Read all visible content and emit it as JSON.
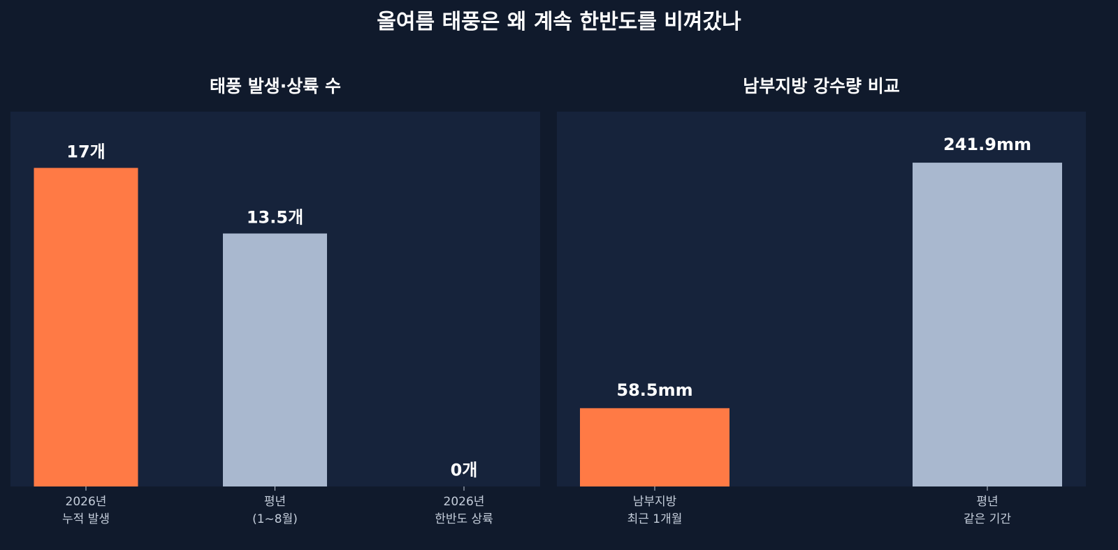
{
  "title": "올여름 태풍은 왜 계속 한반도를 비껴갔나",
  "chart_data": [
    {
      "type": "bar",
      "title": "태풍 발생·상륙 수",
      "categories": [
        "2026년\n누적 발생",
        "평년\n(1~8월)",
        "2026년\n한반도 상륙"
      ],
      "values": [
        17,
        13.5,
        0
      ],
      "value_labels": [
        "17개",
        "13.5개",
        "0개"
      ],
      "colors": [
        "#ff7a45",
        "#a9b8cf",
        "#a9b8cf"
      ],
      "ylim": [
        0,
        20
      ]
    },
    {
      "type": "bar",
      "title": "남부지방 강수량 비교",
      "categories": [
        "남부지방\n최근 1개월",
        "평년\n같은 기간"
      ],
      "values": [
        58.5,
        241.9
      ],
      "value_labels": [
        "58.5mm",
        "241.9mm"
      ],
      "colors": [
        "#ff7a45",
        "#a9b8cf"
      ],
      "ylim": [
        0,
        280
      ]
    }
  ]
}
